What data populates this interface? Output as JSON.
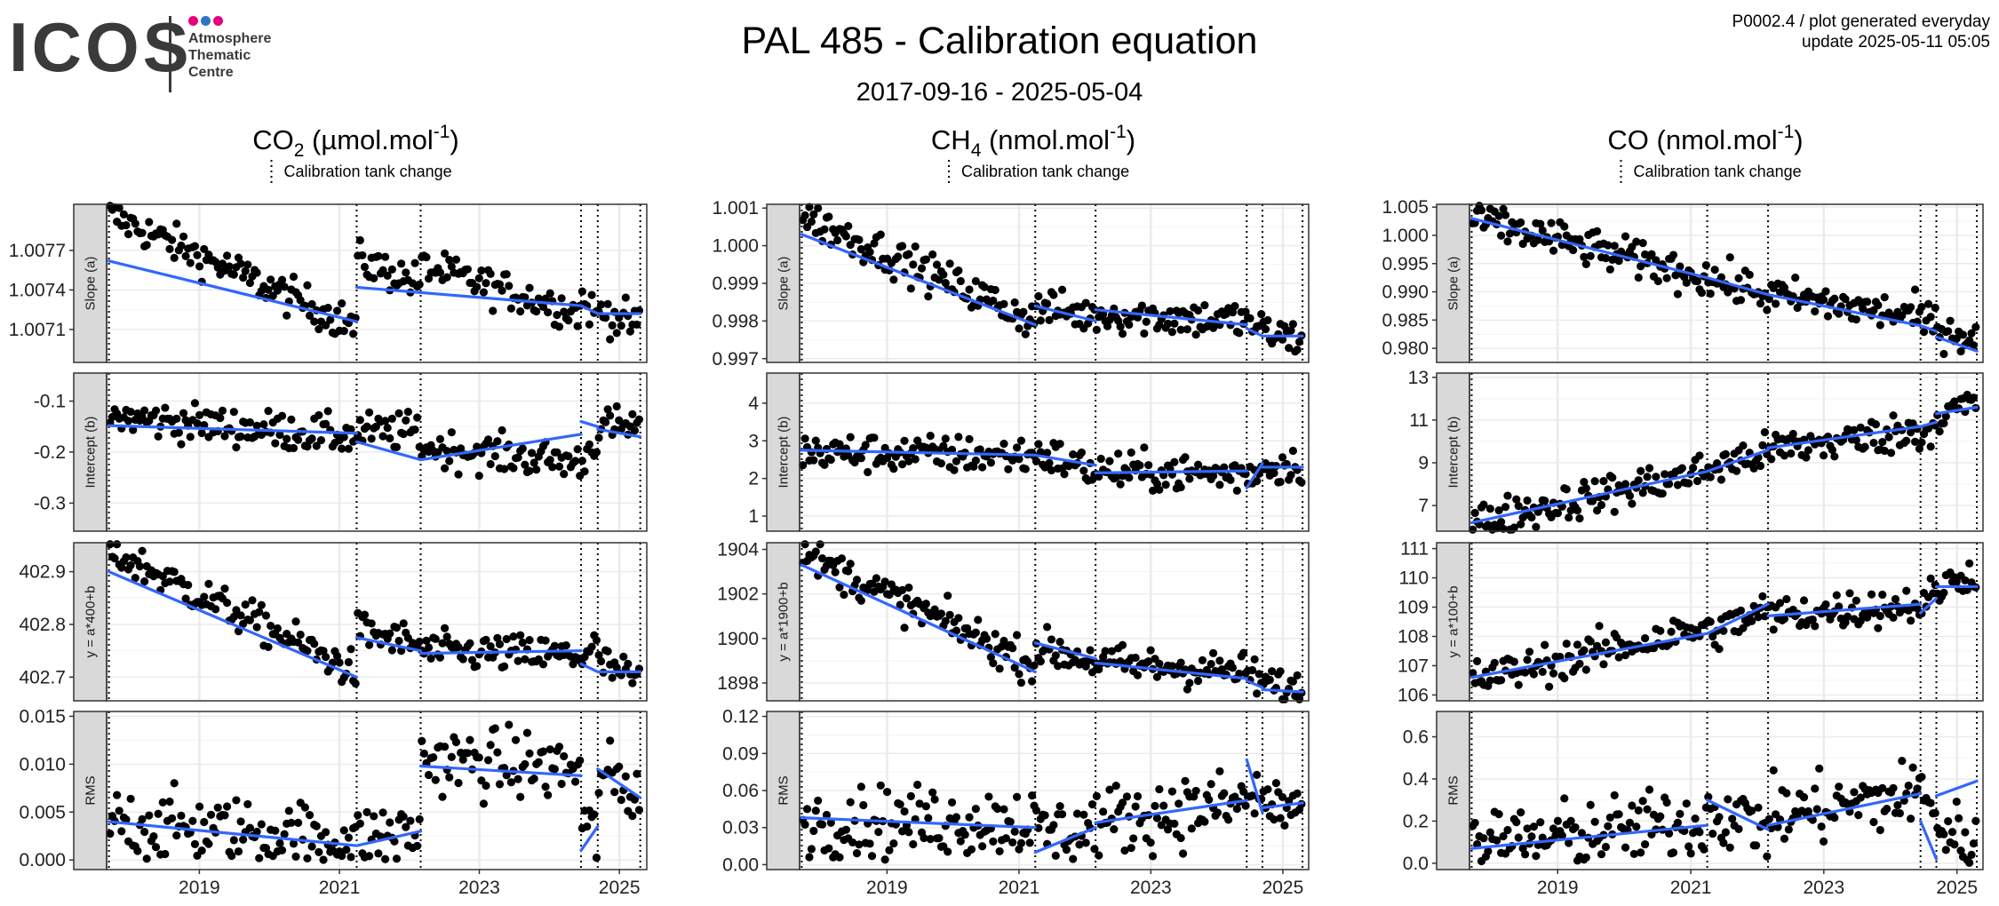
{
  "header": {
    "logo_text": "ICOS",
    "logo_sub": [
      "Atmosphere",
      "Thematic",
      "Centre"
    ],
    "logo_dot_colors": [
      "#e6007e",
      "#2e74c4",
      "#e6007e"
    ],
    "title": "PAL 485 - Calibration equation",
    "date_range": "2017-09-16 - 2025-05-04",
    "info_line1": "P0002.4 / plot generated everyday",
    "info_line2": "update  2025-05-11 05:05"
  },
  "style": {
    "point_color": "#000000",
    "fit_color": "#3366ff",
    "strip_fill": "#d9d9d9",
    "grid_color": "#ebebeb"
  },
  "chart_data": [
    {
      "type": "scatter",
      "title": {
        "base": "CO",
        "sub": "2",
        "unit": " (µmol.mol",
        "sup": "-1",
        "close": ")"
      },
      "legend": "Calibration tank change",
      "x_ticks": [
        "2019",
        "2021",
        "2023",
        "2025"
      ],
      "x_range": [
        "2017-09-16",
        "2025-05-04"
      ],
      "tank_changes": [
        "2017-09-16",
        "2021-04-01",
        "2022-03-01",
        "2024-06-15",
        "2024-09-10",
        "2025-04-20"
      ],
      "panels": [
        {
          "strip": "Slope (a)",
          "ylim": [
            1.00685,
            1.00805
          ],
          "ticks": [
            1.0071,
            1.0074,
            1.0077
          ],
          "tick_labels": [
            "1.0071",
            "1.0074",
            "1.0077"
          ],
          "trend": [
            [
              1.00797,
              1.00712
            ],
            [
              1.00763,
              1.00745
            ],
            [
              1.00758,
              1.00723
            ],
            [
              1.00735,
              1.00718
            ],
            [
              1.00725,
              1.00712
            ],
            [
              1.00722,
              1.00722
            ]
          ],
          "fits": [
            [
              "2017-09-16",
              1.00762,
              "2021-04-01",
              1.00716
            ],
            [
              "2021-04-01",
              1.00742,
              "2022-03-01",
              1.00738
            ],
            [
              "2022-03-01",
              1.00738,
              "2024-06-15",
              1.00728
            ],
            [
              "2024-06-15",
              1.00728,
              "2024-09-10",
              1.00722
            ],
            [
              "2024-09-10",
              1.00722,
              "2025-04-20",
              1.00722
            ]
          ]
        },
        {
          "strip": "Intercept (b)",
          "ylim": [
            -0.355,
            -0.045
          ],
          "ticks": [
            -0.3,
            -0.2,
            -0.1
          ],
          "tick_labels": [
            "-0.3",
            "-0.2",
            "-0.1"
          ],
          "trend": [
            [
              -0.13,
              -0.17
            ],
            [
              -0.16,
              -0.16
            ],
            [
              -0.19,
              -0.22
            ],
            [
              -0.22,
              -0.17
            ],
            [
              -0.15,
              -0.15
            ],
            [
              -0.16,
              -0.19
            ]
          ],
          "fits": [
            [
              "2017-09-16",
              -0.148,
              "2021-04-01",
              -0.163
            ],
            [
              "2021-04-01",
              -0.18,
              "2022-03-01",
              -0.215
            ],
            [
              "2022-03-01",
              -0.215,
              "2024-06-15",
              -0.165
            ],
            [
              "2024-06-15",
              -0.14,
              "2024-09-10",
              -0.15
            ],
            [
              "2024-09-10",
              -0.155,
              "2025-04-20",
              -0.17
            ]
          ]
        },
        {
          "strip": "y = a*400+b",
          "ylim": [
            402.655,
            402.955
          ],
          "ticks": [
            402.7,
            402.8,
            402.9
          ],
          "tick_labels": [
            "402.7",
            "402.8",
            "402.9"
          ],
          "trend": [
            [
              402.94,
              402.71
            ],
            [
              402.79,
              402.76
            ],
            [
              402.75,
              402.74
            ],
            [
              402.74,
              402.76
            ],
            [
              402.73,
              402.69
            ],
            [
              402.72,
              402.72
            ]
          ],
          "fits": [
            [
              "2017-09-16",
              402.9,
              "2021-04-01",
              402.7
            ],
            [
              "2021-04-01",
              402.775,
              "2022-03-01",
              402.75
            ],
            [
              "2022-03-01",
              402.745,
              "2024-06-15",
              402.75
            ],
            [
              "2024-06-15",
              402.725,
              "2024-09-10",
              402.71
            ],
            [
              "2024-09-10",
              402.71,
              "2025-04-20",
              402.71
            ]
          ]
        },
        {
          "strip": "RMS",
          "ylim": [
            -0.001,
            0.0155
          ],
          "ticks": [
            0.0,
            0.005,
            0.01,
            0.015
          ],
          "tick_labels": [
            "0.000",
            "0.005",
            "0.010",
            "0.015"
          ],
          "trend": [
            [
              0.004,
              0.002
            ],
            [
              0.002,
              0.003
            ],
            [
              0.0105,
              0.0095
            ],
            [
              0.004,
              0.002
            ],
            [
              0.009,
              0.007
            ],
            [
              0.007,
              0.006
            ]
          ],
          "fits": [
            [
              "2017-09-16",
              0.004,
              "2021-04-01",
              0.0015
            ],
            [
              "2021-04-01",
              0.0015,
              "2022-03-01",
              0.003
            ],
            [
              "2022-03-01",
              0.0098,
              "2024-06-15",
              0.0088
            ],
            [
              "2024-06-15",
              0.001,
              "2024-09-10",
              0.0035
            ],
            [
              "2024-09-10",
              0.0095,
              "2025-04-20",
              0.0065
            ]
          ]
        }
      ]
    },
    {
      "type": "scatter",
      "title": {
        "base": "CH",
        "sub": "4",
        "unit": " (nmol.mol",
        "sup": "-1",
        "close": ")"
      },
      "legend": "Calibration tank change",
      "x_ticks": [
        "2019",
        "2021",
        "2023",
        "2025"
      ],
      "x_range": [
        "2017-09-16",
        "2025-05-04"
      ],
      "tank_changes": [
        "2017-09-16",
        "2021-04-01",
        "2022-03-01",
        "2024-06-15",
        "2024-09-10",
        "2025-04-20"
      ],
      "panels": [
        {
          "strip": "Slope (a)",
          "ylim": [
            0.9969,
            1.0011
          ],
          "ticks": [
            0.997,
            0.998,
            0.999,
            1.0,
            1.001
          ],
          "tick_labels": [
            "0.997",
            "0.998",
            "0.999",
            "1.000",
            "1.001"
          ],
          "trend": [
            [
              1.0008,
              0.998
            ],
            [
              0.9984,
              0.9981
            ],
            [
              0.9982,
              0.998
            ],
            [
              0.998,
              0.9978
            ],
            [
              0.9977,
              0.9975
            ],
            [
              0.9976,
              0.9976
            ]
          ],
          "fits": [
            [
              "2017-09-16",
              1.0003,
              "2021-04-01",
              0.9979
            ],
            [
              "2021-04-01",
              0.9984,
              "2022-03-01",
              0.998
            ],
            [
              "2022-03-01",
              0.9983,
              "2024-06-15",
              0.9979
            ],
            [
              "2024-06-15",
              0.9978,
              "2024-09-10",
              0.9976
            ],
            [
              "2024-09-10",
              0.9976,
              "2025-04-20",
              0.9976
            ]
          ]
        },
        {
          "strip": "Intercept (b)",
          "ylim": [
            0.6,
            4.8
          ],
          "ticks": [
            1,
            2,
            3,
            4
          ],
          "tick_labels": [
            "1",
            "2",
            "3",
            "4"
          ],
          "trend": [
            [
              2.7,
              2.6
            ],
            [
              2.7,
              2.2
            ],
            [
              2.2,
              2.1
            ],
            [
              2.1,
              2.3
            ],
            [
              2.3,
              2.4
            ],
            [
              2.3,
              2.3
            ]
          ],
          "fits": [
            [
              "2017-09-16",
              2.75,
              "2021-04-01",
              2.62
            ],
            [
              "2021-04-01",
              2.62,
              "2022-03-01",
              2.35
            ],
            [
              "2022-03-01",
              2.15,
              "2024-06-15",
              2.2
            ],
            [
              "2024-06-15",
              1.75,
              "2024-09-10",
              2.4
            ],
            [
              "2024-09-10",
              2.3,
              "2025-04-20",
              2.3
            ]
          ]
        },
        {
          "strip": "y = a*1900+b",
          "ylim": [
            1897.2,
            1904.3
          ],
          "ticks": [
            1898,
            1900,
            1902,
            1904
          ],
          "tick_labels": [
            "1898",
            "1900",
            "1902",
            "1904"
          ],
          "trend": [
            [
              1903.8,
              1898.8
            ],
            [
              1899.6,
              1899.0
            ],
            [
              1898.9,
              1898.5
            ],
            [
              1898.5,
              1898.1
            ],
            [
              1898.0,
              1897.6
            ],
            [
              1897.6,
              1897.6
            ]
          ],
          "fits": [
            [
              "2017-09-16",
              1903.3,
              "2021-04-01",
              1898.5
            ],
            [
              "2021-04-01",
              1899.8,
              "2022-03-01",
              1899.1
            ],
            [
              "2022-03-01",
              1898.9,
              "2024-06-15",
              1898.2
            ],
            [
              "2024-06-15",
              1898.1,
              "2024-09-10",
              1897.8
            ],
            [
              "2024-09-10",
              1897.7,
              "2025-04-20",
              1897.6
            ]
          ]
        },
        {
          "strip": "RMS",
          "ylim": [
            -0.004,
            0.124
          ],
          "ticks": [
            0.0,
            0.03,
            0.06,
            0.09,
            0.12
          ],
          "tick_labels": [
            "0.00",
            "0.03",
            "0.06",
            "0.09",
            "0.12"
          ],
          "trend": [
            [
              0.035,
              0.035
            ],
            [
              0.025,
              0.03
            ],
            [
              0.035,
              0.05
            ],
            [
              0.06,
              0.05
            ],
            [
              0.05,
              0.045
            ],
            [
              0.05,
              0.05
            ]
          ],
          "fits": [
            [
              "2017-09-16",
              0.038,
              "2021-04-01",
              0.03
            ],
            [
              "2021-04-01",
              0.01,
              "2022-03-01",
              0.03
            ],
            [
              "2022-03-01",
              0.034,
              "2024-06-15",
              0.052
            ],
            [
              "2024-06-15",
              0.085,
              "2024-09-10",
              0.042
            ],
            [
              "2024-09-10",
              0.046,
              "2025-04-20",
              0.05
            ]
          ]
        }
      ]
    },
    {
      "type": "scatter",
      "title": {
        "base": "CO",
        "sub": "",
        "unit": " (nmol.mol",
        "sup": "-1",
        "close": ")"
      },
      "legend": "Calibration tank change",
      "x_ticks": [
        "2019",
        "2021",
        "2023",
        "2025"
      ],
      "x_range": [
        "2017-09-16",
        "2025-05-04"
      ],
      "tank_changes": [
        "2017-09-16",
        "2021-04-01",
        "2022-03-01",
        "2024-06-15",
        "2024-09-10",
        "2025-04-20"
      ],
      "panels": [
        {
          "strip": "Slope (a)",
          "ylim": [
            0.9775,
            1.0055
          ],
          "ticks": [
            0.98,
            0.985,
            0.99,
            0.995,
            1.0,
            1.005
          ],
          "tick_labels": [
            "0.980",
            "0.985",
            "0.990",
            "0.995",
            "1.000",
            "1.005"
          ],
          "trend": [
            [
              1.003,
              0.9925
            ],
            [
              0.9925,
              0.9895
            ],
            [
              0.9895,
              0.9855
            ],
            [
              0.9855,
              0.984
            ],
            [
              0.984,
              0.9815
            ],
            [
              0.9815,
              0.9795
            ]
          ],
          "fits": [
            [
              "2017-09-16",
              1.003,
              "2021-04-01",
              0.9925
            ],
            [
              "2021-04-01",
              0.9925,
              "2022-03-01",
              0.9895
            ],
            [
              "2022-03-01",
              0.9895,
              "2024-06-15",
              0.984
            ],
            [
              "2024-06-15",
              0.984,
              "2024-09-10",
              0.983
            ],
            [
              "2024-09-10",
              0.982,
              "2025-04-20",
              0.9795
            ]
          ]
        },
        {
          "strip": "Intercept (b)",
          "ylim": [
            5.8,
            13.2
          ],
          "ticks": [
            7,
            9,
            11,
            13
          ],
          "tick_labels": [
            "7",
            "9",
            "11",
            "13"
          ],
          "trend": [
            [
              6.2,
              8.6
            ],
            [
              8.7,
              9.5
            ],
            [
              9.6,
              10.5
            ],
            [
              10.3,
              10.8
            ],
            [
              11.2,
              11.8
            ],
            [
              11.5,
              11.7
            ]
          ],
          "fits": [
            [
              "2017-09-16",
              6.2,
              "2021-04-01",
              8.6
            ],
            [
              "2021-04-01",
              8.6,
              "2022-03-01",
              9.6
            ],
            [
              "2022-03-01",
              9.7,
              "2024-06-15",
              10.7
            ],
            [
              "2024-06-15",
              10.7,
              "2024-09-10",
              10.9
            ],
            [
              "2024-09-10",
              11.3,
              "2025-04-20",
              11.6
            ]
          ]
        },
        {
          "strip": "y = a*100+b",
          "ylim": [
            105.8,
            111.2
          ],
          "ticks": [
            106,
            107,
            108,
            109,
            110,
            111
          ],
          "tick_labels": [
            "106",
            "107",
            "108",
            "109",
            "110",
            "111"
          ],
          "trend": [
            [
              106.5,
              108.3
            ],
            [
              108.1,
              108.9
            ],
            [
              108.7,
              109.1
            ],
            [
              109.0,
              109.5
            ],
            [
              109.6,
              110.3
            ],
            [
              109.7,
              109.7
            ]
          ],
          "fits": [
            [
              "2017-09-16",
              106.6,
              "2021-04-01",
              108.1
            ],
            [
              "2021-04-01",
              108.1,
              "2022-03-01",
              109.1
            ],
            [
              "2022-03-01",
              108.7,
              "2024-06-15",
              109.1
            ],
            [
              "2024-06-15",
              108.8,
              "2024-09-10",
              109.3
            ],
            [
              "2024-09-10",
              109.7,
              "2025-04-20",
              109.7
            ]
          ]
        },
        {
          "strip": "RMS",
          "ylim": [
            -0.03,
            0.72
          ],
          "ticks": [
            0.0,
            0.2,
            0.4,
            0.6
          ],
          "tick_labels": [
            "0.0",
            "0.2",
            "0.4",
            "0.6"
          ],
          "trend": [
            [
              0.08,
              0.2
            ],
            [
              0.25,
              0.18
            ],
            [
              0.22,
              0.33
            ],
            [
              0.35,
              0.3
            ],
            [
              0.15,
              0.1
            ],
            [
              0.3,
              0.4
            ]
          ],
          "fits": [
            [
              "2017-09-16",
              0.07,
              "2021-04-01",
              0.18
            ],
            [
              "2021-04-01",
              0.3,
              "2022-03-01",
              0.16
            ],
            [
              "2022-03-01",
              0.18,
              "2024-06-15",
              0.33
            ],
            [
              "2024-06-15",
              0.2,
              "2024-09-10",
              0.02
            ],
            [
              "2024-09-10",
              0.32,
              "2025-04-20",
              0.39
            ]
          ]
        }
      ]
    }
  ]
}
